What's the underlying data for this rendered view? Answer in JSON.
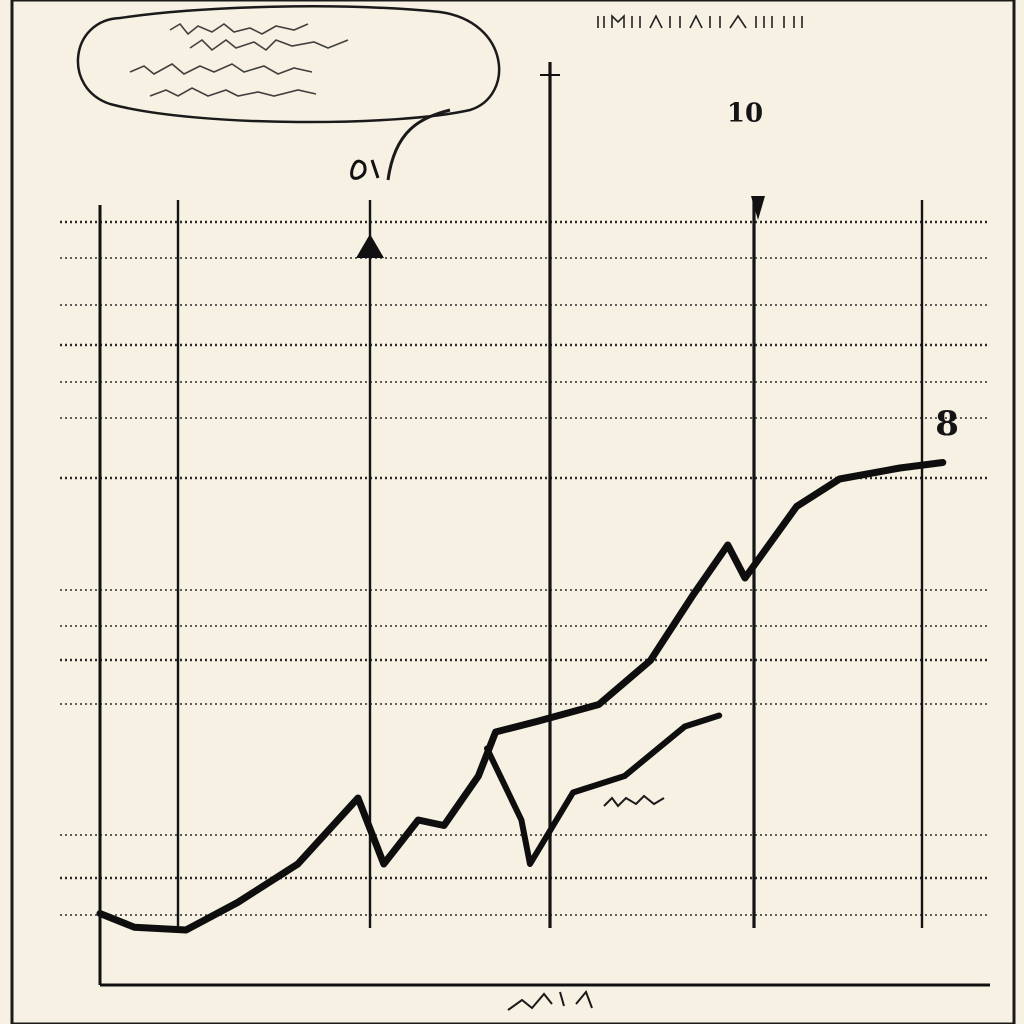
{
  "chart_data": {
    "type": "line",
    "title": "",
    "xlabel": "",
    "ylabel": "",
    "series": [
      {
        "values": [
          {
            "x": 0.0,
            "y": 1.3
          },
          {
            "x": 0.4,
            "y": 1.05
          },
          {
            "x": 1.0,
            "y": 1.0
          },
          {
            "x": 1.6,
            "y": 1.5
          },
          {
            "x": 2.3,
            "y": 2.2
          },
          {
            "x": 3.0,
            "y": 3.4
          },
          {
            "x": 3.3,
            "y": 2.2
          },
          {
            "x": 3.7,
            "y": 3.0
          },
          {
            "x": 4.0,
            "y": 2.9
          },
          {
            "x": 4.4,
            "y": 3.8
          },
          {
            "x": 4.6,
            "y": 4.6
          },
          {
            "x": 5.1,
            "y": 4.8
          },
          {
            "x": 5.8,
            "y": 5.1
          },
          {
            "x": 6.4,
            "y": 5.9
          },
          {
            "x": 6.9,
            "y": 7.1
          },
          {
            "x": 7.3,
            "y": 8.0
          },
          {
            "x": 7.5,
            "y": 7.4
          },
          {
            "x": 8.1,
            "y": 8.7
          },
          {
            "x": 8.6,
            "y": 9.2
          },
          {
            "x": 9.3,
            "y": 9.4
          },
          {
            "x": 9.8,
            "y": 9.5
          }
        ]
      },
      {
        "values": [
          {
            "x": 4.5,
            "y": 4.3
          },
          {
            "x": 4.9,
            "y": 3.0
          },
          {
            "x": 5.0,
            "y": 2.2
          },
          {
            "x": 5.5,
            "y": 3.5
          },
          {
            "x": 6.1,
            "y": 3.8
          },
          {
            "x": 6.8,
            "y": 4.7
          },
          {
            "x": 7.2,
            "y": 4.9
          }
        ]
      }
    ],
    "xlim": [
      0,
      10
    ],
    "ylim": [
      0,
      15
    ],
    "annotations": [
      {
        "text": "10",
        "x": 7.5,
        "y": 15.7
      },
      {
        "text": "8",
        "x": 9.85,
        "y": 10.0
      }
    ],
    "grid": true,
    "legend": "none"
  }
}
